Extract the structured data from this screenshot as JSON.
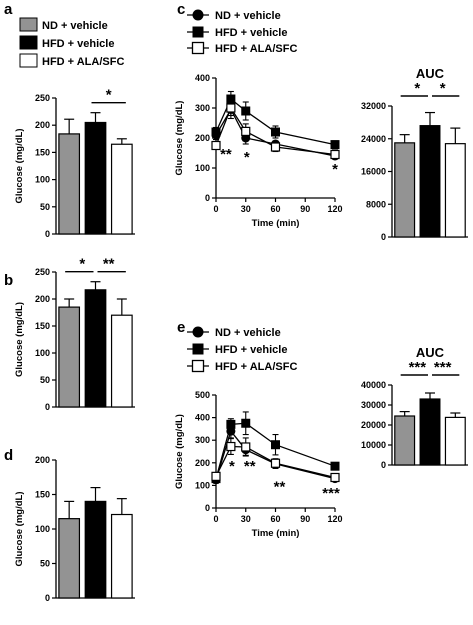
{
  "legend": {
    "top": [
      "ND + vehicle",
      "HFD + vehicle",
      "HFD + ALA/SFC"
    ],
    "c": [
      "ND + vehicle",
      "HFD + vehicle",
      "HFD + ALA/SFC"
    ],
    "e": [
      "ND + vehicle",
      "HFD + vehicle",
      "HFD + ALA/SFC"
    ]
  },
  "colors": {
    "nd": "#939393",
    "hfd": "#000000",
    "ala": "#ffffff",
    "axis": "#000000"
  },
  "chart_data": [
    {
      "id": "a",
      "type": "bar",
      "letter": "a",
      "categories": [
        "ND + vehicle",
        "HFD + vehicle",
        "HFD + ALA/SFC"
      ],
      "values": [
        184,
        205,
        165
      ],
      "errors": [
        27,
        18,
        10
      ],
      "ylabel": "Glucose (mg/dL)",
      "ylim": [
        0,
        250
      ],
      "yticks": [
        0,
        50,
        100,
        150,
        200,
        250
      ],
      "sig": [
        {
          "from": 1,
          "to": 2,
          "label": "*"
        }
      ]
    },
    {
      "id": "b",
      "type": "bar",
      "letter": "b",
      "categories": [
        "ND + vehicle",
        "HFD + vehicle",
        "HFD + ALA/SFC"
      ],
      "values": [
        185,
        217,
        170
      ],
      "errors": [
        15,
        15,
        30
      ],
      "ylabel": "Glucose (mg/dL)",
      "ylim": [
        0,
        250
      ],
      "yticks": [
        0,
        50,
        100,
        150,
        200,
        250
      ],
      "sig": [
        {
          "from": 0,
          "to": 1,
          "label": "*"
        },
        {
          "from": 1,
          "to": 2,
          "label": "**"
        }
      ]
    },
    {
      "id": "d",
      "type": "bar",
      "letter": "d",
      "categories": [
        "ND + vehicle",
        "HFD + vehicle",
        "HFD + ALA/SFC"
      ],
      "values": [
        115,
        140,
        121
      ],
      "errors": [
        25,
        20,
        23
      ],
      "ylabel": "Glucose (mg/dL)",
      "ylim": [
        0,
        200
      ],
      "yticks": [
        0,
        50,
        100,
        150,
        200
      ],
      "sig": []
    },
    {
      "id": "c",
      "type": "line",
      "letter": "c",
      "x": [
        0,
        15,
        30,
        60,
        120
      ],
      "series": [
        {
          "name": "ND + vehicle",
          "values": [
            210,
            295,
            200,
            180,
            140
          ],
          "errors": [
            15,
            30,
            20,
            10,
            10
          ]
        },
        {
          "name": "HFD + vehicle",
          "values": [
            220,
            330,
            290,
            220,
            178
          ],
          "errors": [
            15,
            25,
            30,
            20,
            12
          ]
        },
        {
          "name": "HFD + ALA/SFC",
          "values": [
            175,
            300,
            222,
            170,
            145
          ],
          "errors": [
            10,
            25,
            25,
            15,
            15
          ]
        }
      ],
      "xlabel": "Time (min)",
      "ylabel": "Glucose (mg/dL)",
      "xlim": [
        0,
        120
      ],
      "xticks": [
        0,
        30,
        60,
        90,
        120
      ],
      "ylim": [
        0,
        400
      ],
      "yticks": [
        0,
        100,
        200,
        300,
        400
      ],
      "annotations": [
        {
          "x": 10,
          "y": 150,
          "label": "**"
        },
        {
          "x": 31,
          "y": 140,
          "label": "*"
        },
        {
          "x": 120,
          "y": 100,
          "label": "*"
        }
      ]
    },
    {
      "id": "c_auc",
      "type": "bar",
      "title": "AUC",
      "categories": [
        "ND + vehicle",
        "HFD + vehicle",
        "HFD + ALA/SFC"
      ],
      "values": [
        23000,
        27200,
        22800
      ],
      "errors": [
        2000,
        3200,
        3800
      ],
      "ylim": [
        0,
        32000
      ],
      "yticks": [
        0,
        8000,
        16000,
        24000,
        32000
      ],
      "sig": [
        {
          "from": 0,
          "to": 1,
          "label": "*"
        },
        {
          "from": 1,
          "to": 2,
          "label": "*"
        }
      ]
    },
    {
      "id": "e",
      "type": "line",
      "letter": "e",
      "x": [
        0,
        15,
        30,
        60,
        120
      ],
      "series": [
        {
          "name": "ND + vehicle",
          "values": [
            125,
            340,
            258,
            195,
            130
          ],
          "errors": [
            15,
            30,
            25,
            20,
            10
          ]
        },
        {
          "name": "HFD + vehicle",
          "values": [
            130,
            370,
            375,
            280,
            185
          ],
          "errors": [
            15,
            25,
            50,
            45,
            10
          ]
        },
        {
          "name": "HFD + ALA/SFC",
          "values": [
            140,
            272,
            270,
            198,
            135
          ],
          "errors": [
            15,
            35,
            40,
            20,
            10
          ]
        }
      ],
      "xlabel": "Time (min)",
      "ylabel": "Glucose (mg/dL)",
      "xlim": [
        0,
        120
      ],
      "xticks": [
        0,
        30,
        60,
        90,
        120
      ],
      "ylim": [
        0,
        500
      ],
      "yticks": [
        0,
        100,
        200,
        300,
        400,
        500
      ],
      "annotations": [
        {
          "x": 16,
          "y": 190,
          "label": "*"
        },
        {
          "x": 34,
          "y": 190,
          "label": "**"
        },
        {
          "x": 64,
          "y": 100,
          "label": "**"
        },
        {
          "x": 116,
          "y": 70,
          "label": "***"
        }
      ]
    },
    {
      "id": "e_auc",
      "type": "bar",
      "title": "AUC",
      "categories": [
        "ND + vehicle",
        "HFD + vehicle",
        "HFD + ALA/SFC"
      ],
      "values": [
        24500,
        33000,
        23800
      ],
      "errors": [
        2200,
        3000,
        2200
      ],
      "ylim": [
        0,
        40000
      ],
      "yticks": [
        0,
        10000,
        20000,
        30000,
        40000
      ],
      "sig": [
        {
          "from": 0,
          "to": 1,
          "label": "***"
        },
        {
          "from": 1,
          "to": 2,
          "label": "***"
        }
      ]
    }
  ]
}
